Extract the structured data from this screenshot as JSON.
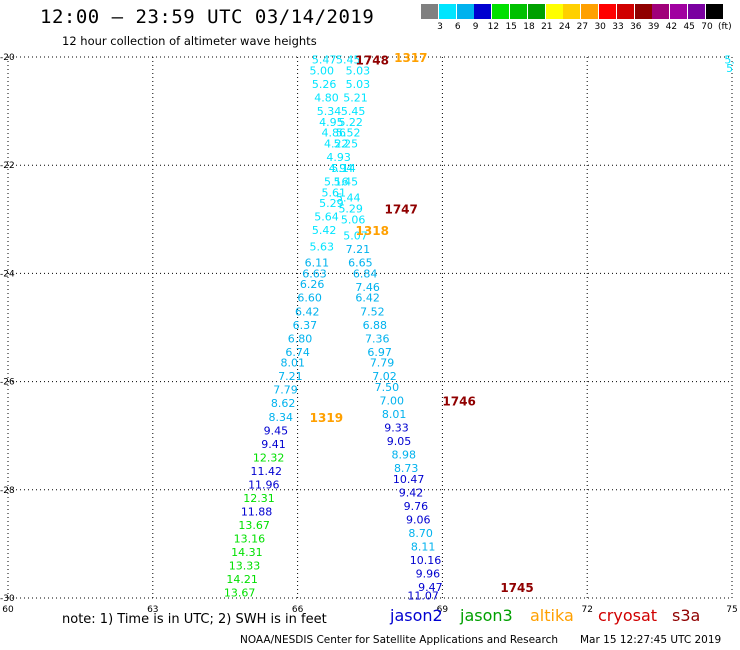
{
  "header": {
    "title": "12:00 – 23:59 UTC 03/14/2019",
    "subtitle": "12 hour collection of altimeter wave heights"
  },
  "colorbar": {
    "colors": [
      "#808080",
      "#00e5ff",
      "#00b2ee",
      "#0000d0",
      "#00e000",
      "#00c000",
      "#00a000",
      "#ffff00",
      "#ffd000",
      "#ffa000",
      "#ff0000",
      "#d00000",
      "#900000",
      "#a0007a",
      "#a000a0",
      "#7a00a0",
      "#000000"
    ],
    "labels": [
      "3",
      "6",
      "9",
      "12",
      "15",
      "18",
      "21",
      "24",
      "27",
      "30",
      "33",
      "36",
      "39",
      "42",
      "45",
      "70",
      "(ft)"
    ]
  },
  "note": "note:  1) Time is in UTC;  2) SWH is in feet",
  "satellites": [
    {
      "name": "jason2",
      "color": "#0000d0"
    },
    {
      "name": "jason3",
      "color": "#00a000"
    },
    {
      "name": "altika",
      "color": "#ffa000"
    },
    {
      "name": "cryosat",
      "color": "#d00000"
    },
    {
      "name": "s3a",
      "color": "#900000"
    }
  ],
  "credit": "NOAA/NESDIS Center for Satellite Applications and Research",
  "timestamp": "Mar 15 12:27:45 UTC 2019",
  "chart_data": {
    "type": "scatter",
    "xlim": [
      60,
      75
    ],
    "ylim": [
      -30,
      -20
    ],
    "xticks": [
      60,
      63,
      66,
      69,
      72,
      75
    ],
    "yticks": [
      -20,
      -22,
      -24,
      -26,
      -28,
      -30
    ],
    "grid": true,
    "times": [
      {
        "label": "1748",
        "x": 67.2,
        "y": -20.05,
        "color": "#900000"
      },
      {
        "label": "1317",
        "x": 68.0,
        "y": -20.0,
        "color": "#ffa000"
      },
      {
        "label": "1747",
        "x": 67.8,
        "y": -22.8,
        "color": "#900000"
      },
      {
        "label": "1318",
        "x": 67.2,
        "y": -23.2,
        "color": "#ffa000"
      },
      {
        "label": "1746",
        "x": 69.0,
        "y": -26.35,
        "color": "#900000"
      },
      {
        "label": "1319",
        "x": 66.25,
        "y": -26.65,
        "color": "#ffa000"
      },
      {
        "label": "1745",
        "x": 70.2,
        "y": -29.8,
        "color": "#900000"
      }
    ],
    "points": [
      {
        "x": 66.55,
        "y": -20.05,
        "v": "5.47",
        "c": "#00e5ff"
      },
      {
        "x": 67.05,
        "y": -20.05,
        "v": "5.45",
        "c": "#00e5ff"
      },
      {
        "x": 74.95,
        "y": -20.05,
        "v": "5.",
        "c": "#00e5ff"
      },
      {
        "x": 74.95,
        "y": -20.2,
        "v": "5",
        "c": "#00e5ff"
      },
      {
        "x": 66.5,
        "y": -20.25,
        "v": "5.00",
        "c": "#00e5ff"
      },
      {
        "x": 67.25,
        "y": -20.25,
        "v": "5.03",
        "c": "#00e5ff"
      },
      {
        "x": 66.55,
        "y": -20.5,
        "v": "5.26",
        "c": "#00e5ff"
      },
      {
        "x": 67.25,
        "y": -20.5,
        "v": "5.03",
        "c": "#00e5ff"
      },
      {
        "x": 66.6,
        "y": -20.75,
        "v": "4.80",
        "c": "#00e5ff"
      },
      {
        "x": 67.2,
        "y": -20.75,
        "v": "5.21",
        "c": "#00e5ff"
      },
      {
        "x": 66.65,
        "y": -21.0,
        "v": "5.34",
        "c": "#00e5ff"
      },
      {
        "x": 67.15,
        "y": -21.0,
        "v": "5.45",
        "c": "#00e5ff"
      },
      {
        "x": 66.7,
        "y": -21.2,
        "v": "4.95",
        "c": "#00e5ff"
      },
      {
        "x": 67.1,
        "y": -21.2,
        "v": "5.22",
        "c": "#00e5ff"
      },
      {
        "x": 66.75,
        "y": -21.4,
        "v": "4.86",
        "c": "#00e5ff"
      },
      {
        "x": 67.05,
        "y": -21.4,
        "v": "5.52",
        "c": "#00e5ff"
      },
      {
        "x": 66.8,
        "y": -21.6,
        "v": "4.22",
        "c": "#00e5ff"
      },
      {
        "x": 67.0,
        "y": -21.6,
        "v": "5.25",
        "c": "#00e5ff"
      },
      {
        "x": 66.85,
        "y": -21.85,
        "v": "4.93",
        "c": "#00e5ff"
      },
      {
        "x": 66.9,
        "y": -22.05,
        "v": "4.94",
        "c": "#00e5ff"
      },
      {
        "x": 66.95,
        "y": -22.05,
        "v": "5.14",
        "c": "#00e5ff"
      },
      {
        "x": 66.8,
        "y": -22.3,
        "v": "5.16",
        "c": "#00e5ff"
      },
      {
        "x": 67.0,
        "y": -22.3,
        "v": "5.45",
        "c": "#00e5ff"
      },
      {
        "x": 66.75,
        "y": -22.5,
        "v": "5.61",
        "c": "#00e5ff"
      },
      {
        "x": 67.05,
        "y": -22.6,
        "v": "5.44",
        "c": "#00e5ff"
      },
      {
        "x": 66.7,
        "y": -22.7,
        "v": "5.29",
        "c": "#00e5ff"
      },
      {
        "x": 67.1,
        "y": -22.8,
        "v": "5.29",
        "c": "#00e5ff"
      },
      {
        "x": 66.6,
        "y": -22.95,
        "v": "5.64",
        "c": "#00e5ff"
      },
      {
        "x": 67.15,
        "y": -23.0,
        "v": "5.06",
        "c": "#00e5ff"
      },
      {
        "x": 66.55,
        "y": -23.2,
        "v": "5.42",
        "c": "#00e5ff"
      },
      {
        "x": 67.2,
        "y": -23.3,
        "v": "5.07",
        "c": "#00e5ff"
      },
      {
        "x": 66.5,
        "y": -23.5,
        "v": "5.63",
        "c": "#00e5ff"
      },
      {
        "x": 67.25,
        "y": -23.55,
        "v": "7.21",
        "c": "#00b2ee"
      },
      {
        "x": 66.4,
        "y": -23.8,
        "v": "6.11",
        "c": "#00b2ee"
      },
      {
        "x": 67.3,
        "y": -23.8,
        "v": "6.65",
        "c": "#00b2ee"
      },
      {
        "x": 66.35,
        "y": -24.0,
        "v": "6.63",
        "c": "#00b2ee"
      },
      {
        "x": 67.4,
        "y": -24.0,
        "v": "6.84",
        "c": "#00b2ee"
      },
      {
        "x": 66.3,
        "y": -24.2,
        "v": "6.26",
        "c": "#00b2ee"
      },
      {
        "x": 67.45,
        "y": -24.25,
        "v": "7.46",
        "c": "#00b2ee"
      },
      {
        "x": 66.25,
        "y": -24.45,
        "v": "6.60",
        "c": "#00b2ee"
      },
      {
        "x": 67.45,
        "y": -24.45,
        "v": "6.42",
        "c": "#00b2ee"
      },
      {
        "x": 66.2,
        "y": -24.7,
        "v": "6.42",
        "c": "#00b2ee"
      },
      {
        "x": 67.55,
        "y": -24.7,
        "v": "7.52",
        "c": "#00b2ee"
      },
      {
        "x": 66.15,
        "y": -24.95,
        "v": "6.37",
        "c": "#00b2ee"
      },
      {
        "x": 67.6,
        "y": -24.95,
        "v": "6.88",
        "c": "#00b2ee"
      },
      {
        "x": 66.05,
        "y": -25.2,
        "v": "6.80",
        "c": "#00b2ee"
      },
      {
        "x": 67.65,
        "y": -25.2,
        "v": "7.36",
        "c": "#00b2ee"
      },
      {
        "x": 66.0,
        "y": -25.45,
        "v": "6.74",
        "c": "#00b2ee"
      },
      {
        "x": 67.7,
        "y": -25.45,
        "v": "6.97",
        "c": "#00b2ee"
      },
      {
        "x": 65.9,
        "y": -25.65,
        "v": "8.01",
        "c": "#00b2ee"
      },
      {
        "x": 67.75,
        "y": -25.65,
        "v": "7.79",
        "c": "#00b2ee"
      },
      {
        "x": 65.85,
        "y": -25.9,
        "v": "7.21",
        "c": "#00b2ee"
      },
      {
        "x": 67.8,
        "y": -25.9,
        "v": "7.02",
        "c": "#00b2ee"
      },
      {
        "x": 65.75,
        "y": -26.15,
        "v": "7.79",
        "c": "#00b2ee"
      },
      {
        "x": 67.85,
        "y": -26.1,
        "v": "7.50",
        "c": "#00b2ee"
      },
      {
        "x": 65.7,
        "y": -26.4,
        "v": "8.62",
        "c": "#00b2ee"
      },
      {
        "x": 67.95,
        "y": -26.35,
        "v": "7.00",
        "c": "#00b2ee"
      },
      {
        "x": 65.65,
        "y": -26.65,
        "v": "8.34",
        "c": "#00b2ee"
      },
      {
        "x": 68.0,
        "y": -26.6,
        "v": "8.01",
        "c": "#00b2ee"
      },
      {
        "x": 65.55,
        "y": -26.9,
        "v": "9.45",
        "c": "#0000d0"
      },
      {
        "x": 68.05,
        "y": -26.85,
        "v": "9.33",
        "c": "#0000d0"
      },
      {
        "x": 65.5,
        "y": -27.15,
        "v": "9.41",
        "c": "#0000d0"
      },
      {
        "x": 68.1,
        "y": -27.1,
        "v": "9.05",
        "c": "#0000d0"
      },
      {
        "x": 65.4,
        "y": -27.4,
        "v": "12.32",
        "c": "#00e000"
      },
      {
        "x": 68.2,
        "y": -27.35,
        "v": "8.98",
        "c": "#00b2ee"
      },
      {
        "x": 65.35,
        "y": -27.65,
        "v": "11.42",
        "c": "#0000d0"
      },
      {
        "x": 68.25,
        "y": -27.6,
        "v": "8.73",
        "c": "#00b2ee"
      },
      {
        "x": 65.3,
        "y": -27.9,
        "v": "11.96",
        "c": "#0000d0"
      },
      {
        "x": 68.3,
        "y": -27.8,
        "v": "10.47",
        "c": "#0000d0"
      },
      {
        "x": 65.2,
        "y": -28.15,
        "v": "12.31",
        "c": "#00e000"
      },
      {
        "x": 68.35,
        "y": -28.05,
        "v": "9.42",
        "c": "#0000d0"
      },
      {
        "x": 65.15,
        "y": -28.4,
        "v": "11.88",
        "c": "#0000d0"
      },
      {
        "x": 68.45,
        "y": -28.3,
        "v": "9.76",
        "c": "#0000d0"
      },
      {
        "x": 65.1,
        "y": -28.65,
        "v": "13.67",
        "c": "#00e000"
      },
      {
        "x": 68.5,
        "y": -28.55,
        "v": "9.06",
        "c": "#0000d0"
      },
      {
        "x": 65.0,
        "y": -28.9,
        "v": "13.16",
        "c": "#00e000"
      },
      {
        "x": 68.55,
        "y": -28.8,
        "v": "8.70",
        "c": "#00b2ee"
      },
      {
        "x": 64.95,
        "y": -29.15,
        "v": "14.31",
        "c": "#00e000"
      },
      {
        "x": 68.6,
        "y": -29.05,
        "v": "8.11",
        "c": "#00b2ee"
      },
      {
        "x": 64.9,
        "y": -29.4,
        "v": "13.33",
        "c": "#00e000"
      },
      {
        "x": 68.65,
        "y": -29.3,
        "v": "10.16",
        "c": "#0000d0"
      },
      {
        "x": 64.85,
        "y": -29.65,
        "v": "14.21",
        "c": "#00e000"
      },
      {
        "x": 68.7,
        "y": -29.55,
        "v": "9.96",
        "c": "#0000d0"
      },
      {
        "x": 64.8,
        "y": -29.9,
        "v": "13.67",
        "c": "#00e000"
      },
      {
        "x": 68.75,
        "y": -29.8,
        "v": "9.47",
        "c": "#0000d0"
      },
      {
        "x": 68.6,
        "y": -29.95,
        "v": "11.07",
        "c": "#0000d0"
      }
    ]
  }
}
